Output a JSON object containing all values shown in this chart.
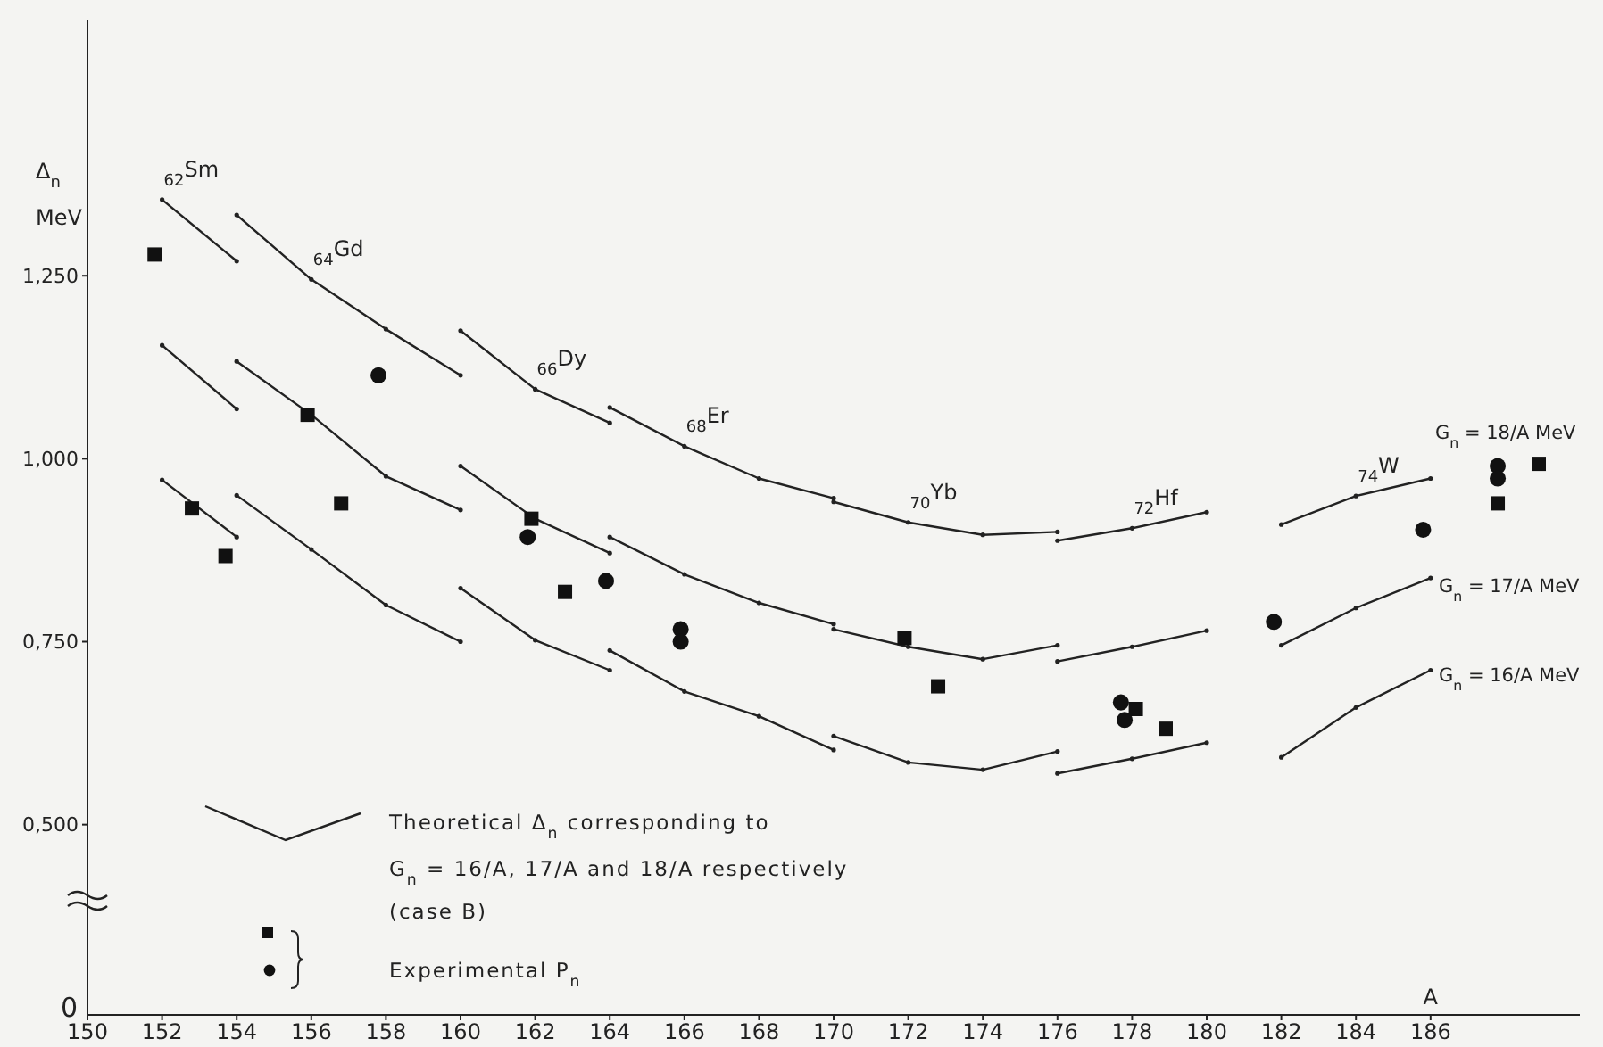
{
  "chart_data": {
    "type": "line",
    "ylabel": "Δ$_{n}$ MeV",
    "xlabel": "A",
    "xlim": [
      150,
      190
    ],
    "xticks": [
      150,
      152,
      154,
      156,
      158,
      160,
      162,
      164,
      166,
      168,
      170,
      172,
      174,
      176,
      178,
      180,
      182,
      184,
      186
    ],
    "ylim": [
      0.24,
      1.6
    ],
    "yticks": [
      {
        "value": 0.5,
        "label": "0,500"
      },
      {
        "value": 0.75,
        "label": "0,750"
      },
      {
        "value": 1.0,
        "label": "1,000"
      },
      {
        "value": 1.25,
        "label": "1,250"
      }
    ],
    "grid": false,
    "legend": false,
    "series": [
      {
        "color": "#222222",
        "x": [
          152,
          154
        ],
        "values": [
          1.354,
          1.27
        ]
      },
      {
        "color": "#222222",
        "x": [
          152,
          154
        ],
        "values": [
          1.155,
          1.068
        ]
      },
      {
        "color": "#222222",
        "x": [
          152,
          154
        ],
        "values": [
          0.971,
          0.893
        ]
      },
      {
        "color": "#222222",
        "x": [
          154,
          156,
          158,
          160
        ],
        "values": [
          1.333,
          1.245,
          1.177,
          1.114
        ]
      },
      {
        "color": "#222222",
        "x": [
          154,
          156,
          158,
          160
        ],
        "values": [
          1.133,
          1.06,
          0.976,
          0.93
        ]
      },
      {
        "color": "#222222",
        "x": [
          154,
          156,
          158,
          160
        ],
        "values": [
          0.95,
          0.876,
          0.8,
          0.75
        ]
      },
      {
        "color": "#222222",
        "x": [
          160,
          162,
          164
        ],
        "values": [
          1.175,
          1.095,
          1.049
        ]
      },
      {
        "color": "#222222",
        "x": [
          160,
          162,
          164
        ],
        "values": [
          0.99,
          0.918,
          0.871
        ]
      },
      {
        "color": "#222222",
        "x": [
          160,
          162,
          164
        ],
        "values": [
          0.823,
          0.752,
          0.711
        ]
      },
      {
        "color": "#222222",
        "x": [
          164,
          166,
          168,
          170
        ],
        "values": [
          1.07,
          1.017,
          0.973,
          0.946
        ]
      },
      {
        "color": "#222222",
        "x": [
          164,
          166,
          168,
          170
        ],
        "values": [
          0.893,
          0.842,
          0.803,
          0.774
        ]
      },
      {
        "color": "#222222",
        "x": [
          164,
          166,
          168,
          170
        ],
        "values": [
          0.738,
          0.682,
          0.648,
          0.602
        ]
      },
      {
        "color": "#222222",
        "x": [
          170,
          172,
          174,
          176
        ],
        "values": [
          0.941,
          0.913,
          0.896,
          0.9
        ]
      },
      {
        "color": "#222222",
        "x": [
          170,
          172,
          174,
          176
        ],
        "values": [
          0.767,
          0.743,
          0.726,
          0.745
        ]
      },
      {
        "color": "#222222",
        "x": [
          170,
          172,
          174,
          176
        ],
        "values": [
          0.621,
          0.585,
          0.575,
          0.6
        ]
      },
      {
        "color": "#222222",
        "x": [
          176,
          178,
          180
        ],
        "values": [
          0.888,
          0.905,
          0.927
        ]
      },
      {
        "color": "#222222",
        "x": [
          176,
          178,
          180
        ],
        "values": [
          0.723,
          0.743,
          0.765
        ]
      },
      {
        "color": "#222222",
        "x": [
          176,
          178,
          180
        ],
        "values": [
          0.57,
          0.59,
          0.612
        ]
      },
      {
        "color": "#222222",
        "x": [
          182,
          184,
          186
        ],
        "values": [
          0.91,
          0.949,
          0.973
        ]
      },
      {
        "color": "#222222",
        "x": [
          182,
          184,
          186
        ],
        "values": [
          0.745,
          0.796,
          0.837
        ]
      },
      {
        "color": "#222222",
        "x": [
          182,
          184,
          186
        ],
        "values": [
          0.592,
          0.66,
          0.711
        ]
      },
      {
        "type": "scatter",
        "marker": "square",
        "color": "#111111",
        "x": [
          151.8,
          155.9,
          152.8,
          153.7,
          156.8,
          161.9,
          162.8,
          171.9,
          172.8,
          178.1,
          178.9,
          187.8,
          188.9
        ],
        "values": [
          1.279,
          1.06,
          0.932,
          0.867,
          0.939,
          0.918,
          0.818,
          0.755,
          0.689,
          0.658,
          0.631,
          0.939,
          0.993
        ]
      },
      {
        "type": "scatter",
        "marker": "circle",
        "color": "#111111",
        "x": [
          157.8,
          161.8,
          163.9,
          165.9,
          165.9,
          177.7,
          177.8,
          181.8,
          185.8,
          187.8,
          187.8
        ],
        "values": [
          1.114,
          0.893,
          0.833,
          0.767,
          0.75,
          0.667,
          0.643,
          0.777,
          0.903,
          0.99,
          0.973
        ]
      }
    ],
    "annotations": [
      "0",
      "Theoretical Δ$_{n}$ corresponding to",
      "G$_{n}$ = 16/A, 17/A and 18/A   respectively",
      "(case B)",
      "Experimental P$_{n}$",
      {
        "text": "$_{62}$Sm",
        "x": 152,
        "y": 1.354
      },
      {
        "text": "$_{64}$Gd",
        "x": 156,
        "y": 1.245
      },
      {
        "text": "$_{66}$Dy",
        "x": 162,
        "y": 1.095
      },
      {
        "text": "$_{68}$Er",
        "x": 166,
        "y": 1.017
      },
      {
        "text": "$_{70}$Yb",
        "x": 172,
        "y": 0.913
      },
      {
        "text": "$_{72}$Hf",
        "x": 178,
        "y": 0.905
      },
      {
        "text": "$_{74}$W",
        "x": 184,
        "y": 0.949
      },
      "G$_{n}$ = 18/A MeV",
      "G$_{n}$ = 17/A MeV",
      "G$_{n}$ = 16/A MeV"
    ]
  }
}
